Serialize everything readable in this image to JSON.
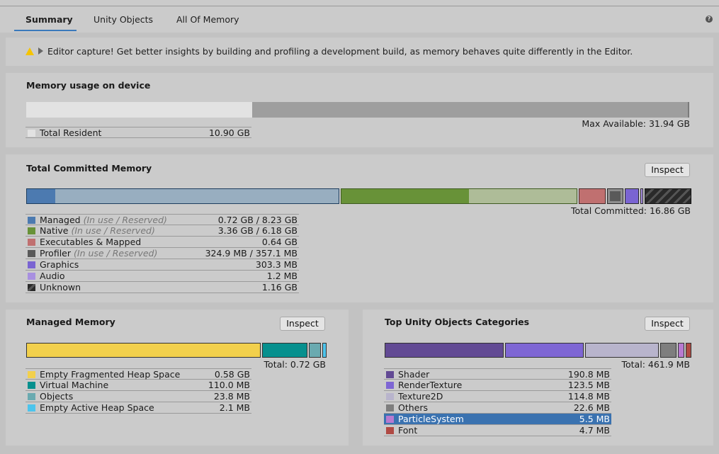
{
  "tabs": [
    {
      "label": "Summary"
    },
    {
      "label": "Unity Objects"
    },
    {
      "label": "All Of Memory"
    }
  ],
  "help_icon": "question-circle-icon",
  "warning": {
    "icon": "warning-triangle-icon",
    "text": "Editor capture! Get better insights by building and profiling a development build, as memory behaves quite differently in the Editor."
  },
  "usage": {
    "title": "Memory usage on device",
    "max_available": "Max Available: 31.94 GB",
    "resident_fraction": 0.341,
    "legend": [
      {
        "name": "Total Resident",
        "value": "10.90 GB",
        "color": "#e2e2e2"
      }
    ]
  },
  "committed": {
    "title": "Total Committed Memory",
    "inspect": "Inspect",
    "total": "Total Committed: 16.86 GB",
    "legend": [
      {
        "name": "Managed",
        "note": "(In use / Reserved)",
        "value": "0.72 GB / 8.23 GB",
        "color": "#4c7ab0"
      },
      {
        "name": "Native",
        "note": "(In use / Reserved)",
        "value": "3.36 GB / 6.18 GB",
        "color": "#689238"
      },
      {
        "name": "Executables & Mapped",
        "note": "",
        "value": "0.64 GB",
        "color": "#c07070"
      },
      {
        "name": "Profiler",
        "note": "(In use / Reserved)",
        "value": "324.9 MB / 357.1 MB",
        "color": "#5a5a5a"
      },
      {
        "name": "Graphics",
        "note": "",
        "value": "303.3 MB",
        "color": "#7a64d2"
      },
      {
        "name": "Audio",
        "note": "",
        "value": "1.2 MB",
        "color": "#a890e0"
      },
      {
        "name": "Unknown",
        "note": "",
        "value": "1.16 GB",
        "color": "#333333"
      }
    ]
  },
  "managed": {
    "title": "Managed Memory",
    "inspect": "Inspect",
    "total": "Total: 0.72 GB",
    "legend": [
      {
        "name": "Empty Fragmented Heap Space",
        "value": "0.58 GB",
        "color": "#f2d04c"
      },
      {
        "name": "Virtual Machine",
        "value": "110.0 MB",
        "color": "#06908e"
      },
      {
        "name": "Objects",
        "value": "23.8 MB",
        "color": "#6aaab0"
      },
      {
        "name": "Empty Active Heap Space",
        "value": "2.1 MB",
        "color": "#4cc4ec"
      }
    ]
  },
  "objects": {
    "title": "Top Unity Objects Categories",
    "inspect": "Inspect",
    "total": "Total: 461.9 MB",
    "legend": [
      {
        "name": "Shader",
        "value": "190.8 MB",
        "color": "#624a94"
      },
      {
        "name": "RenderTexture",
        "value": "123.5 MB",
        "color": "#7e66d4"
      },
      {
        "name": "Texture2D",
        "value": "114.8 MB",
        "color": "#b8b4cc"
      },
      {
        "name": "Others",
        "value": "22.6 MB",
        "color": "#7e7e7e"
      },
      {
        "name": "ParticleSystem",
        "value": "5.5 MB",
        "color": "#b87ad0",
        "selected": true
      },
      {
        "name": "Font",
        "value": "4.7 MB",
        "color": "#b04a44"
      }
    ]
  }
}
